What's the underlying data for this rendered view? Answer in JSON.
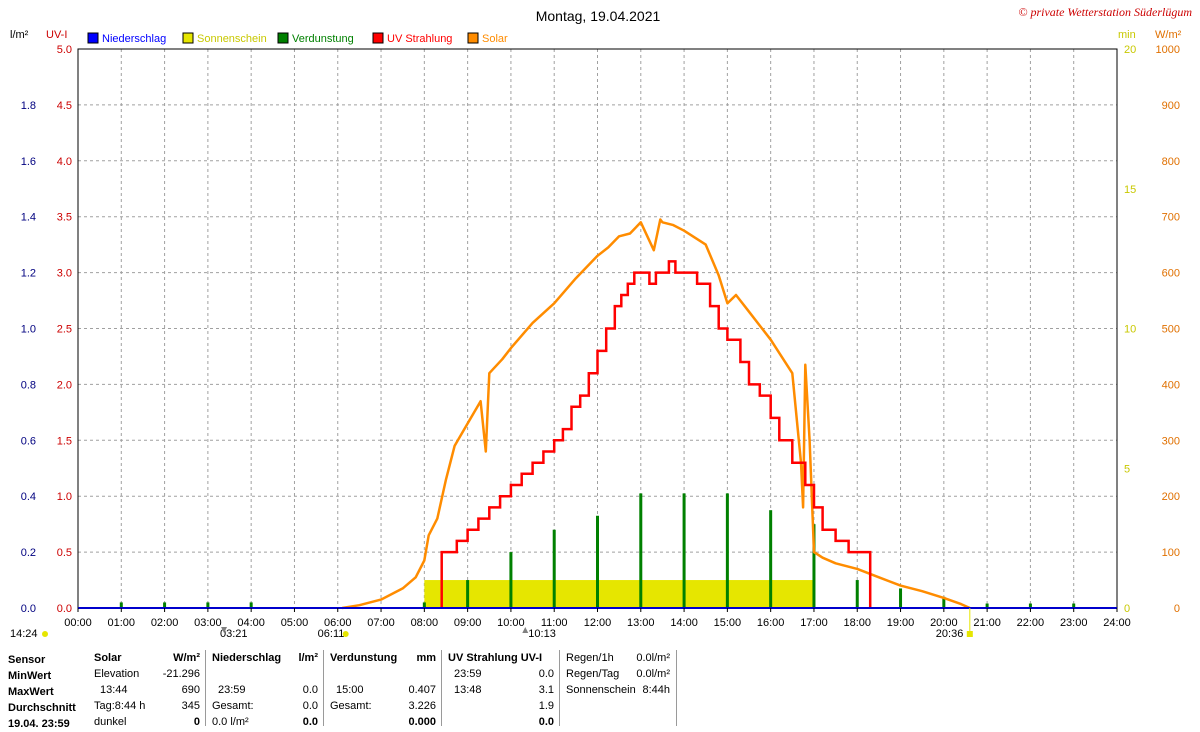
{
  "header": {
    "title": "Montag, 19.04.2021",
    "copyright": "© private Wetterstation Süderlügum"
  },
  "colors": {
    "niederschlag": "#0000ff",
    "sonnenschein": "#e6e600",
    "verdunstung": "#008000",
    "uv": "#ff0000",
    "solar": "#ff8c00",
    "left_axis_text": "#000080",
    "uv_axis_text": "#cc0000",
    "min_axis_text": "#c8c800",
    "wm2_axis_text": "#e07000"
  },
  "chart_data": {
    "type": "line",
    "title": "Montag, 19.04.2021",
    "x_unit": "time",
    "xlim": [
      "00:00",
      "24:00"
    ],
    "x_ticks": [
      "00:00",
      "01:00",
      "02:00",
      "03:00",
      "04:00",
      "05:00",
      "06:00",
      "07:00",
      "08:00",
      "09:00",
      "10:00",
      "11:00",
      "12:00",
      "13:00",
      "14:00",
      "15:00",
      "16:00",
      "17:00",
      "18:00",
      "19:00",
      "20:00",
      "21:00",
      "22:00",
      "23:00",
      "24:00"
    ],
    "axes": {
      "l_m2": {
        "label": "l/m²",
        "range": [
          0,
          2.0
        ],
        "ticks": [
          "0.0",
          "0.2",
          "0.4",
          "0.6",
          "0.8",
          "1.0",
          "1.2",
          "1.4",
          "1.6",
          "1.8"
        ]
      },
      "uv_i": {
        "label": "UV-I",
        "range": [
          0,
          5.0
        ],
        "ticks": [
          "0.0",
          "0.5",
          "1.0",
          "1.5",
          "2.0",
          "2.5",
          "3.0",
          "3.5",
          "4.0",
          "4.5",
          "5.0"
        ]
      },
      "min": {
        "label": "min",
        "range": [
          0,
          20
        ],
        "ticks": [
          "0",
          "5",
          "10",
          "15",
          "20"
        ]
      },
      "w_m2": {
        "label": "W/m²",
        "range": [
          0,
          1000
        ],
        "ticks": [
          "0",
          "100",
          "200",
          "300",
          "400",
          "500",
          "600",
          "700",
          "800",
          "900",
          "1000"
        ]
      }
    },
    "legend": {
      "placement": "top",
      "items": [
        {
          "name": "Niederschlag",
          "color_key": "niederschlag"
        },
        {
          "name": "Sonnenschein",
          "color_key": "sonnenschein"
        },
        {
          "name": "Verdunstung",
          "color_key": "verdunstung"
        },
        {
          "name": "UV Strahlung",
          "color_key": "uv"
        },
        {
          "name": "Solar",
          "color_key": "solar"
        }
      ]
    },
    "grid": true,
    "series": [
      {
        "name": "Solar",
        "axis": "w_m2",
        "style": "line",
        "points": [
          [
            6.1,
            0
          ],
          [
            6.5,
            5
          ],
          [
            7.0,
            15
          ],
          [
            7.5,
            35
          ],
          [
            7.8,
            55
          ],
          [
            8.0,
            85
          ],
          [
            8.1,
            130
          ],
          [
            8.3,
            160
          ],
          [
            8.5,
            230
          ],
          [
            8.7,
            290
          ],
          [
            9.0,
            330
          ],
          [
            9.3,
            370
          ],
          [
            9.42,
            280
          ],
          [
            9.5,
            420
          ],
          [
            9.8,
            445
          ],
          [
            10.0,
            465
          ],
          [
            10.5,
            510
          ],
          [
            11.0,
            545
          ],
          [
            11.5,
            590
          ],
          [
            12.0,
            630
          ],
          [
            12.25,
            645
          ],
          [
            12.5,
            665
          ],
          [
            12.75,
            670
          ],
          [
            13.0,
            690
          ],
          [
            13.3,
            640
          ],
          [
            13.45,
            695
          ],
          [
            13.5,
            690
          ],
          [
            13.75,
            685
          ],
          [
            14.0,
            675
          ],
          [
            14.5,
            650
          ],
          [
            14.8,
            595
          ],
          [
            15.0,
            545
          ],
          [
            15.2,
            560
          ],
          [
            15.5,
            530
          ],
          [
            16.0,
            480
          ],
          [
            16.5,
            420
          ],
          [
            16.7,
            260
          ],
          [
            16.75,
            180
          ],
          [
            16.8,
            435
          ],
          [
            16.9,
            300
          ],
          [
            17.0,
            100
          ],
          [
            17.2,
            90
          ],
          [
            17.5,
            80
          ],
          [
            18.0,
            70
          ],
          [
            18.5,
            55
          ],
          [
            19.0,
            40
          ],
          [
            19.5,
            30
          ],
          [
            20.0,
            18
          ],
          [
            20.4,
            7
          ],
          [
            20.6,
            0
          ]
        ]
      },
      {
        "name": "UV Strahlung",
        "axis": "uv_i",
        "style": "step",
        "points": [
          [
            8.4,
            0
          ],
          [
            8.4,
            0.5
          ],
          [
            8.75,
            0.6
          ],
          [
            9.0,
            0.7
          ],
          [
            9.25,
            0.8
          ],
          [
            9.5,
            0.9
          ],
          [
            9.75,
            1.0
          ],
          [
            10.0,
            1.1
          ],
          [
            10.25,
            1.2
          ],
          [
            10.5,
            1.3
          ],
          [
            10.75,
            1.4
          ],
          [
            11.0,
            1.5
          ],
          [
            11.2,
            1.6
          ],
          [
            11.4,
            1.8
          ],
          [
            11.6,
            1.9
          ],
          [
            11.8,
            2.1
          ],
          [
            12.0,
            2.3
          ],
          [
            12.2,
            2.5
          ],
          [
            12.4,
            2.7
          ],
          [
            12.55,
            2.8
          ],
          [
            12.7,
            2.9
          ],
          [
            12.85,
            3.0
          ],
          [
            13.2,
            2.9
          ],
          [
            13.35,
            3.0
          ],
          [
            13.65,
            3.1
          ],
          [
            13.8,
            3.0
          ],
          [
            14.3,
            2.9
          ],
          [
            14.6,
            2.7
          ],
          [
            14.8,
            2.5
          ],
          [
            15.0,
            2.4
          ],
          [
            15.3,
            2.2
          ],
          [
            15.5,
            2.0
          ],
          [
            15.75,
            1.9
          ],
          [
            16.0,
            1.7
          ],
          [
            16.2,
            1.5
          ],
          [
            16.5,
            1.3
          ],
          [
            16.8,
            1.1
          ],
          [
            17.0,
            0.9
          ],
          [
            17.2,
            0.7
          ],
          [
            17.5,
            0.6
          ],
          [
            17.8,
            0.5
          ],
          [
            18.3,
            0.5
          ],
          [
            18.3,
            0.0
          ]
        ]
      },
      {
        "name": "Sonnenschein",
        "axis": "min",
        "style": "area",
        "segments": [
          [
            8.0,
            17.0,
            1.0
          ]
        ]
      },
      {
        "name": "Verdunstung",
        "axis": "w_m2",
        "style": "bars",
        "bars": [
          [
            1,
            10
          ],
          [
            2,
            10
          ],
          [
            3,
            10
          ],
          [
            4,
            10
          ],
          [
            8,
            10
          ],
          [
            9,
            50
          ],
          [
            10,
            100
          ],
          [
            11,
            140
          ],
          [
            12,
            165
          ],
          [
            13,
            205
          ],
          [
            14,
            205
          ],
          [
            15,
            205
          ],
          [
            16,
            175
          ],
          [
            17,
            150
          ],
          [
            18,
            50
          ],
          [
            19,
            35
          ],
          [
            20,
            20
          ],
          [
            21,
            8
          ],
          [
            22,
            8
          ],
          [
            23,
            8
          ]
        ]
      }
    ],
    "annotations": {
      "left_time": "14:24",
      "moon_rise": "03:21",
      "sunrise": "06:11",
      "moon_set": "10:13",
      "sunset": "20:36"
    }
  },
  "stats": {
    "labels": {
      "sensor": "Sensor",
      "min": "MinWert",
      "max": "MaxWert",
      "avg": "Durchschnitt",
      "date": "19.04. 23:59"
    },
    "solar": {
      "head": "Solar",
      "unit": "W/m²",
      "min_label": "Elevation",
      "min_value": "-21.296",
      "max_time": "13:44",
      "max_value": "690",
      "avg_label": "Tag:8:44 h",
      "avg_value": "345",
      "cur_label": "dunkel",
      "cur_value": "0"
    },
    "niederschlag": {
      "head": "Niederschlag",
      "unit": "l/m²",
      "max_time": "23:59",
      "max_value": "0.0",
      "avg_label": "Gesamt:",
      "avg_value": "0.0",
      "cur_label": "0.0 l/m²",
      "cur_value": "0.0"
    },
    "verdunstung": {
      "head": "Verdunstung",
      "unit": "mm",
      "max_time": "15:00",
      "max_value": "0.407",
      "avg_label": "Gesamt:",
      "avg_value": "3.226",
      "cur_value": "0.000"
    },
    "uv": {
      "head": "UV Strahlung UV-I",
      "min_time": "23:59",
      "min_value": "0.0",
      "max_time": "13:48",
      "max_value": "3.1",
      "avg_value": "1.9",
      "cur_value": "0.0"
    },
    "regen": {
      "h_label": "Regen/1h",
      "h_value": "0.0l/m²",
      "tag_label": "Regen/Tag",
      "tag_value": "0.0l/m²",
      "sonne_label": "Sonnenschein",
      "sonne_value": "8:44h"
    }
  }
}
